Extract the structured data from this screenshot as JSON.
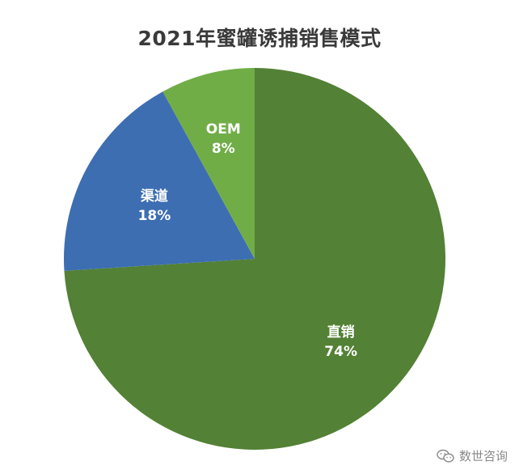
{
  "chart_data": {
    "type": "pie",
    "title": "2021年蜜罐诱捕销售模式",
    "categories": [
      "直销",
      "渠道",
      "OEM"
    ],
    "values": [
      74,
      18,
      8
    ],
    "value_labels": [
      "74%",
      "18%",
      "8%"
    ],
    "colors": [
      "#538135",
      "#3d6eb2",
      "#70ad47"
    ],
    "legend": "none",
    "start": "12 o'clock",
    "direction": "clockwise"
  },
  "watermark": {
    "icon": "wechat-icon",
    "text": "数世咨询"
  }
}
